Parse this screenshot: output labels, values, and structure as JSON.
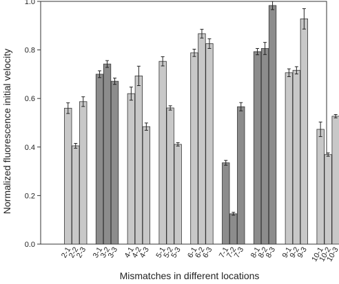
{
  "chart_data": {
    "type": "bar",
    "title": "",
    "xlabel": "Mismatches in different locations",
    "ylabel": "Normalized fluorescence initial velocity",
    "ylim": [
      0,
      1.0
    ],
    "yticks": [
      "0.0",
      "0.2",
      "0.4",
      "0.6",
      "0.8",
      "1.0"
    ],
    "grid": false,
    "legend": "none",
    "colors": {
      "light": "#c8c8c8",
      "dark": "#8c8c8c",
      "stroke": "#333333"
    },
    "groups": [
      {
        "categories": [
          "2-1",
          "2-2",
          "2-3"
        ],
        "values": [
          0.56,
          0.405,
          0.587
        ],
        "errors": [
          0.022,
          0.01,
          0.02
        ],
        "shade": "light"
      },
      {
        "categories": [
          "3-1",
          "3-2",
          "3-3"
        ],
        "values": [
          0.7,
          0.742,
          0.671
        ],
        "errors": [
          0.014,
          0.014,
          0.013
        ],
        "shade": "dark"
      },
      {
        "categories": [
          "4-1",
          "4-2",
          "4-3"
        ],
        "values": [
          0.62,
          0.693,
          0.484
        ],
        "errors": [
          0.027,
          0.04,
          0.015
        ],
        "shade": "light"
      },
      {
        "categories": [
          "5-1",
          "5-2",
          "5-3"
        ],
        "values": [
          0.753,
          0.561,
          0.411
        ],
        "errors": [
          0.019,
          0.009,
          0.007
        ],
        "shade": "light"
      },
      {
        "categories": [
          "6-1",
          "6-2",
          "6-3"
        ],
        "values": [
          0.788,
          0.867,
          0.826
        ],
        "errors": [
          0.015,
          0.018,
          0.02
        ],
        "shade": "light"
      },
      {
        "categories": [
          "7-1",
          "7-2",
          "7-3"
        ],
        "values": [
          0.335,
          0.125,
          0.566
        ],
        "errors": [
          0.01,
          0.006,
          0.017
        ],
        "shade": "dark"
      },
      {
        "categories": [
          "8-1",
          "8-2",
          "8-3"
        ],
        "values": [
          0.793,
          0.806,
          0.983
        ],
        "errors": [
          0.013,
          0.025,
          0.017
        ],
        "shade": "dark"
      },
      {
        "categories": [
          "9-1",
          "9-2",
          "9-3"
        ],
        "values": [
          0.706,
          0.716,
          0.928
        ],
        "errors": [
          0.016,
          0.015,
          0.042
        ],
        "shade": "light"
      },
      {
        "categories": [
          "10-1",
          "10-2",
          "10-3"
        ],
        "values": [
          0.473,
          0.369,
          0.527
        ],
        "errors": [
          0.03,
          0.007,
          0.007
        ],
        "shade": "light"
      }
    ]
  }
}
